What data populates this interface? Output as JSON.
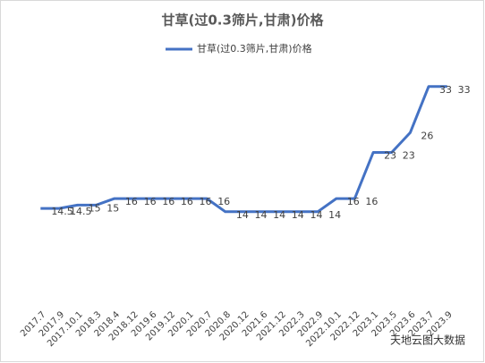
{
  "chart_data": {
    "type": "line",
    "title": "甘草(过0.3筛片,甘肃)价格",
    "categories": [
      "2017.7",
      "2017.9",
      "2017.10.1",
      "2018.3",
      "2018.4",
      "2018.12",
      "2019.6",
      "2019.12",
      "2020.1",
      "2020.7",
      "2020.8",
      "2020.12",
      "2021.6",
      "2021.12",
      "2022.3",
      "2022.9",
      "2022.10.1",
      "2022.12",
      "2023.1",
      "2023.5",
      "2023.6",
      "2023.7",
      "2023.9"
    ],
    "series": [
      {
        "name": "甘草(过0.3筛片,甘肃)价格",
        "color": "#4472c4",
        "values": [
          14.5,
          14.5,
          15,
          15,
          16,
          16,
          16,
          16,
          16,
          16,
          14,
          14,
          14,
          14,
          14,
          14,
          16,
          16,
          23,
          23,
          26,
          33,
          33
        ]
      }
    ],
    "legend": "top",
    "watermark": "天地云图大数据"
  }
}
